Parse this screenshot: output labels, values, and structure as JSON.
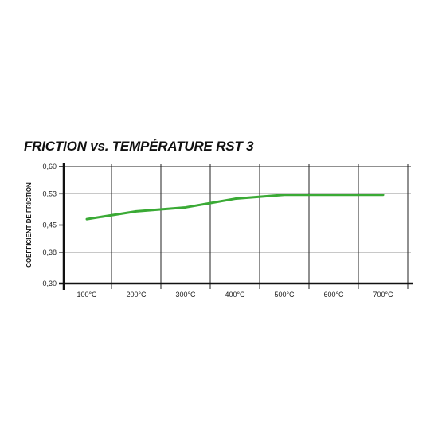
{
  "chart_data": {
    "type": "line",
    "title": "FRICTION vs. TEMPÉRATURE RST 3",
    "xlabel": "",
    "ylabel": "COEFFICIENT DE FRICTION",
    "categories": [
      "100°C",
      "200°C",
      "300°C",
      "400°C",
      "500°C",
      "600°C",
      "700°C"
    ],
    "y_ticks": [
      "0,60",
      "0,53",
      "0,45",
      "0,38",
      "0,30"
    ],
    "y_tick_values": [
      0.6,
      0.53,
      0.45,
      0.38,
      0.3
    ],
    "ylim": [
      0.3,
      0.6
    ],
    "grid": true,
    "series": [
      {
        "name": "",
        "color": "#3aaa35",
        "points": [
          {
            "x": "100°C",
            "y": 0.465
          },
          {
            "x": "200°C",
            "y": 0.485
          },
          {
            "x": "300°C",
            "y": 0.495
          },
          {
            "x": "400°C",
            "y": 0.517
          },
          {
            "x": "500°C",
            "y": 0.527
          },
          {
            "x": "600°C",
            "y": 0.527
          },
          {
            "x": "700°C",
            "y": 0.527
          }
        ]
      }
    ]
  }
}
